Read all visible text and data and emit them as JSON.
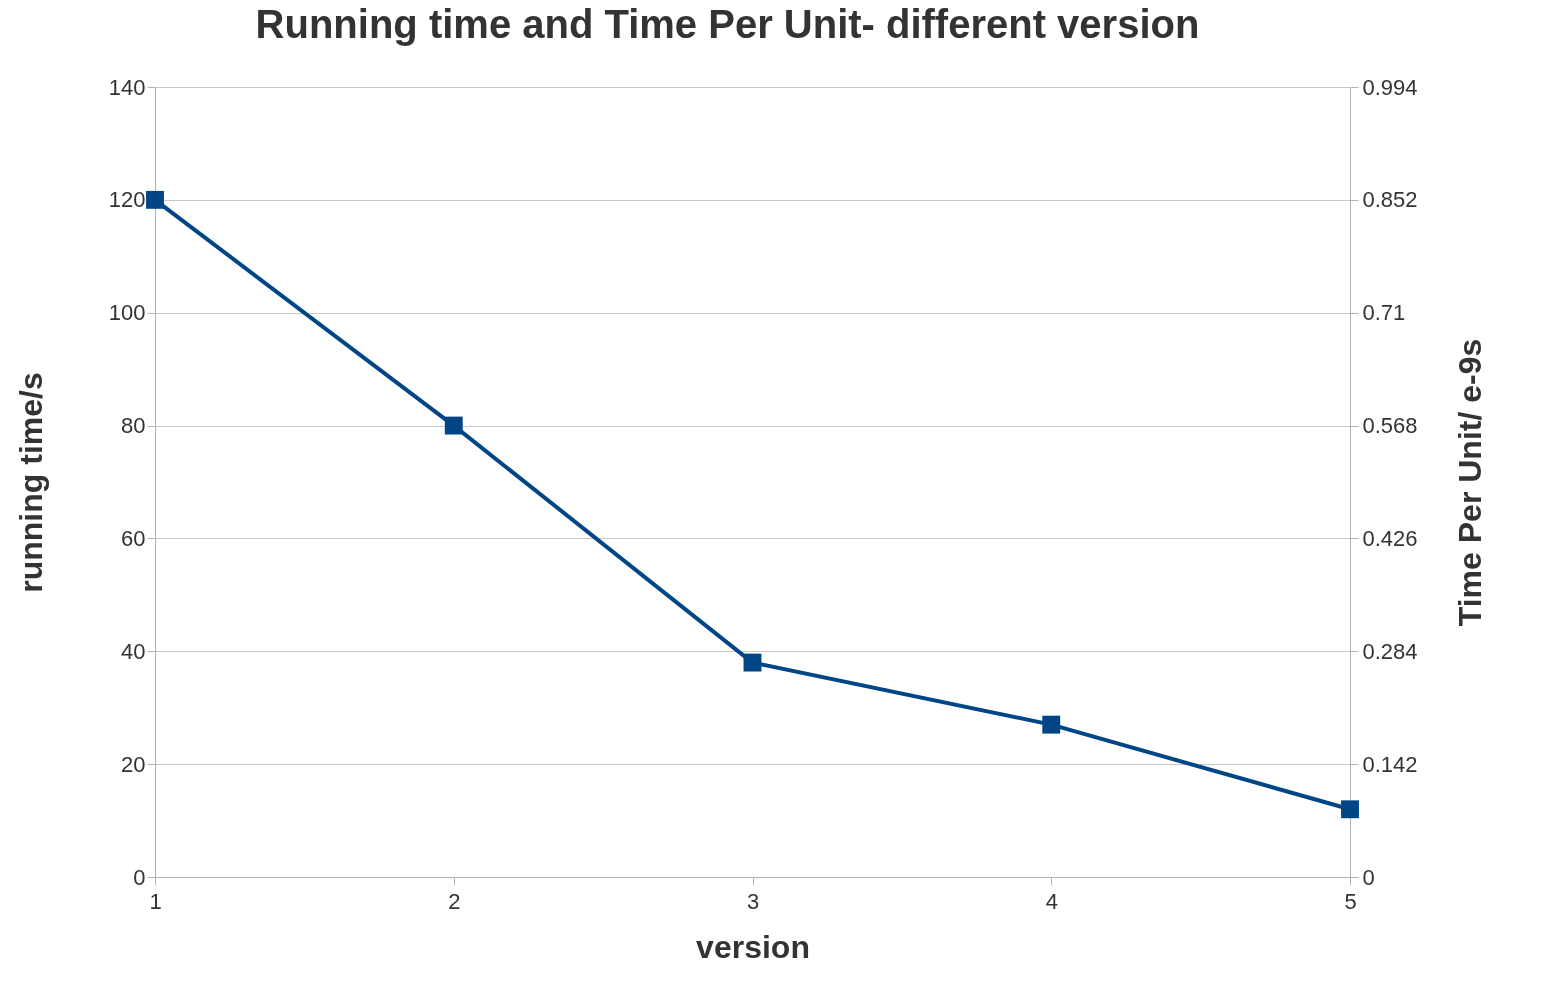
{
  "chart_data": {
    "type": "line",
    "title": "Running time and Time Per Unit- different version",
    "xlabel": "version",
    "ylabel": "running time/s",
    "y2label": "Time Per Unit/ e-9s",
    "x": [
      1,
      2,
      3,
      4,
      5
    ],
    "series": [
      {
        "color": "#004586",
        "values": [
          120,
          80,
          38,
          27,
          12
        ]
      }
    ],
    "xlim": [
      1,
      5
    ],
    "xticks": [
      1,
      2,
      3,
      4,
      5
    ],
    "ylim": [
      0,
      140
    ],
    "yticks": [
      0,
      20,
      40,
      60,
      80,
      100,
      120,
      140
    ],
    "y2lim": [
      0,
      0.994
    ],
    "y2ticks": [
      0,
      0.142,
      0.284,
      0.426,
      0.568,
      0.71,
      0.852,
      0.994
    ],
    "grid": "y",
    "legend": false,
    "marker": "square",
    "line_style": "solid"
  }
}
